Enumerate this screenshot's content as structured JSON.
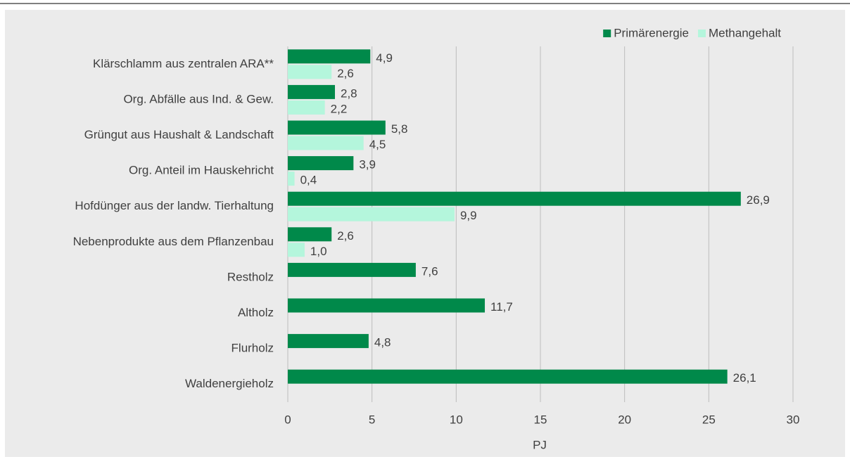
{
  "chart_data": {
    "type": "bar",
    "orientation": "horizontal",
    "categories": [
      "Klärschlamm aus zentralen ARA**",
      "Org. Abfälle aus Ind. & Gew.",
      "Grüngut aus Haushalt & Landschaft",
      "Org. Anteil im Hauskehricht ",
      "Hofdünger aus der landw. Tierhaltung",
      "Nebenprodukte aus dem Pflanzenbau",
      "Restholz",
      "Altholz",
      "Flurholz",
      "Waldenergieholz"
    ],
    "series": [
      {
        "name": "Primärenergie",
        "color": "#00894a",
        "label_color": "#1e9a55",
        "values": [
          4.9,
          2.8,
          5.8,
          3.9,
          26.9,
          2.6,
          7.6,
          11.7,
          4.8,
          26.1
        ],
        "value_labels": [
          "4,9",
          "2,8",
          "5,8",
          "3,9",
          "26,9",
          "2,6",
          "7,6",
          "11,7",
          "4,8",
          "26,1"
        ]
      },
      {
        "name": "Methangehalt",
        "color": "#b4f6dc",
        "label_color": "#404040",
        "values": [
          2.6,
          2.2,
          4.5,
          0.4,
          9.9,
          1.0,
          null,
          null,
          null,
          null
        ],
        "value_labels": [
          "2,6",
          "2,2",
          "4,5",
          "0,4",
          "9,9",
          "1,0",
          null,
          null,
          null,
          null
        ]
      }
    ],
    "xlabel": "PJ",
    "xlim": [
      0,
      30
    ],
    "xticks": [
      0,
      5,
      10,
      15,
      20,
      25,
      30
    ],
    "grid": true,
    "legend": "top-right"
  }
}
